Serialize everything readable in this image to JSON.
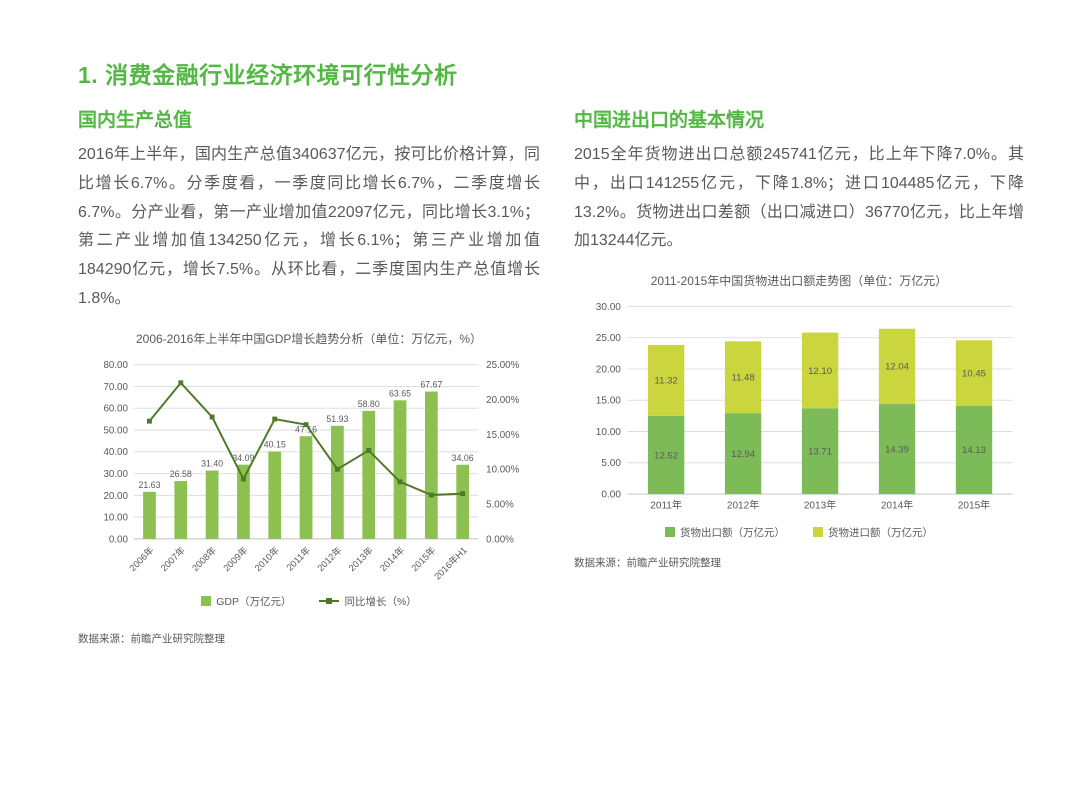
{
  "page": {
    "title": "1. 消费金融行业经济环境可行性分析",
    "accent_color": "#53B843"
  },
  "left_section": {
    "heading": "国内生产总值",
    "body": "2016年上半年，国内生产总值340637亿元，按可比价格计算，同比增长6.7%。分季度看，一季度同比增长6.7%，二季度增长6.7%。分产业看，第一产业增加值22097亿元，同比增长3.1%；第二产业增加值134250亿元，增长6.1%；第三产业增加值184290亿元，增长7.5%。从环比看，二季度国内生产总值增长1.8%。",
    "source": "数据来源：前瞻产业研究院整理"
  },
  "right_section": {
    "heading": "中国进出口的基本情况",
    "body": "2015全年货物进出口总额245741亿元，比上年下降7.0%。其中，出口141255亿元，下降1.8%；进口104485亿元，下降13.2%。货物进出口差额（出口减进口）36770亿元，比上年增加13244亿元。",
    "source": "数据来源：前瞻产业研究院整理"
  },
  "chart_data": [
    {
      "type": "bar",
      "subtype": "combo-bar-line",
      "title": "2006-2016年上半年中国GDP增长趋势分析（单位：万亿元，%）",
      "categories": [
        "2006年",
        "2007年",
        "2008年",
        "2009年",
        "2010年",
        "2011年",
        "2012年",
        "2013年",
        "2014年",
        "2015年",
        "2016年H1"
      ],
      "series": [
        {
          "name": "GDP（万亿元）",
          "type": "bar",
          "axis": "left",
          "values": [
            21.63,
            26.58,
            31.4,
            34.09,
            40.15,
            47.16,
            51.93,
            58.8,
            63.65,
            67.67,
            34.06
          ],
          "color": "#8CC152"
        },
        {
          "name": "同比增长（%）",
          "type": "line",
          "axis": "right",
          "values": [
            16.9,
            22.4,
            17.5,
            8.6,
            17.2,
            16.4,
            10.0,
            12.7,
            8.2,
            6.3,
            6.5
          ],
          "color": "#4C7A28"
        }
      ],
      "left_axis": {
        "min": 0,
        "max": 80,
        "step": 10,
        "tick_format": "0.00"
      },
      "right_axis": {
        "min": 0,
        "max": 25,
        "step": 5,
        "tick_format": "0.00%"
      },
      "grid": true,
      "legend_position": "bottom"
    },
    {
      "type": "bar",
      "subtype": "stacked-bar",
      "title": "2011-2015年中国货物进出口额走势图（单位：万亿元）",
      "categories": [
        "2011年",
        "2012年",
        "2013年",
        "2014年",
        "2015年"
      ],
      "series": [
        {
          "name": "货物出口额（万亿元）",
          "values": [
            12.52,
            12.94,
            13.71,
            14.39,
            14.13
          ],
          "color": "#7CBB58"
        },
        {
          "name": "货物进口额（万亿元）",
          "values": [
            11.32,
            11.48,
            12.1,
            12.04,
            10.45
          ],
          "color": "#CBD63F"
        }
      ],
      "y_axis": {
        "min": 0,
        "max": 30,
        "step": 5,
        "tick_format": "0.00"
      },
      "grid": true,
      "legend_position": "bottom"
    }
  ]
}
